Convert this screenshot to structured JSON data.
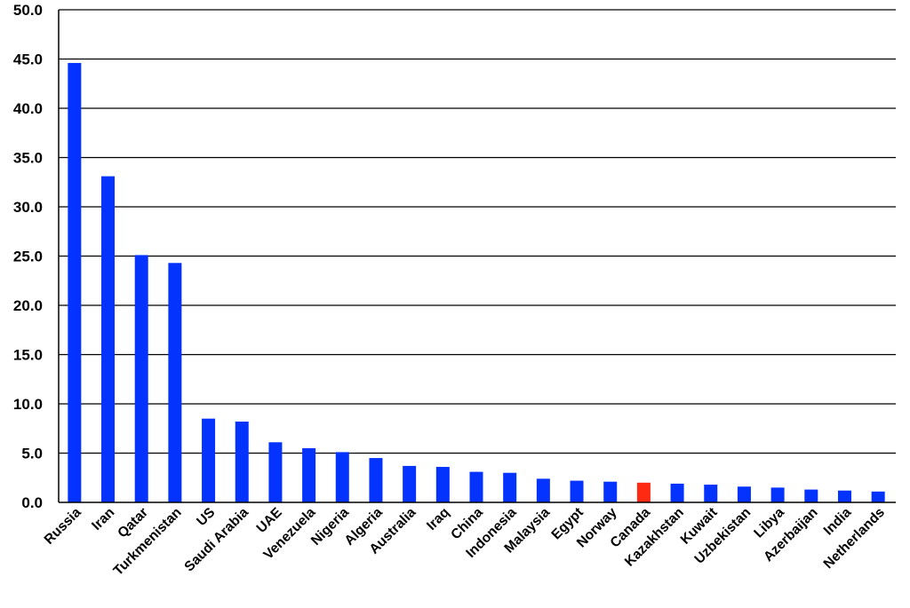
{
  "chart_data": {
    "type": "bar",
    "title": "",
    "xlabel": "",
    "ylabel": "",
    "ylim": [
      0,
      50
    ],
    "yticks": [
      "0.0",
      "5.0",
      "10.0",
      "15.0",
      "20.0",
      "25.0",
      "30.0",
      "35.0",
      "40.0",
      "45.0",
      "50.0"
    ],
    "grid": true,
    "legend": "none",
    "colors": {
      "default": "#0433ff",
      "highlight": "#ff2a12"
    },
    "highlight_category": "Canada",
    "categories": [
      "Russia",
      "Iran",
      "Qatar",
      "Turkmenistan",
      "US",
      "Saudi Arabia",
      "UAE",
      "Venezuela",
      "Nigeria",
      "Algeria",
      "Australia",
      "Iraq",
      "China",
      "Indonesia",
      "Malaysia",
      "Egypt",
      "Norway",
      "Canada",
      "Kazakhstan",
      "Kuwait",
      "Uzbekistan",
      "Libya",
      "Azerbaijan",
      "India",
      "Netherlands"
    ],
    "values": [
      44.6,
      33.1,
      25.1,
      24.3,
      8.5,
      8.2,
      6.1,
      5.5,
      5.1,
      4.5,
      3.7,
      3.6,
      3.1,
      3.0,
      2.4,
      2.2,
      2.1,
      2.0,
      1.9,
      1.8,
      1.6,
      1.5,
      1.3,
      1.2,
      1.1
    ]
  }
}
